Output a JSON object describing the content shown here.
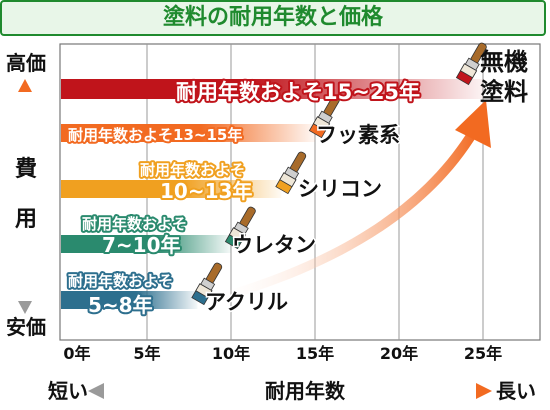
{
  "title": "塗料の耐用年数と価格",
  "y_axis": {
    "high": "高価",
    "label_top": "費",
    "label_bottom": "用",
    "low": "安価"
  },
  "x_axis": {
    "label": "耐用年数",
    "short": "短い",
    "long": "長い"
  },
  "colors": {
    "title_green": "#1f8a2e",
    "acrylic": "#2d6f8e",
    "urethane": "#2a8a6e",
    "silicon": "#f0a020",
    "fluorine": "#f26a21",
    "inorganic": "#c0141b",
    "arrow": "#f26a21"
  },
  "chart_data": {
    "type": "bar",
    "orientation": "horizontal",
    "title": "塗料の耐用年数と価格",
    "xlabel": "耐用年数",
    "ylabel": "費用",
    "xlim": [
      0,
      28
    ],
    "xticks": [
      0,
      5,
      10,
      15,
      20,
      25
    ],
    "xtick_labels": [
      "0年",
      "5年",
      "10年",
      "15年",
      "20年",
      "25年"
    ],
    "grid": true,
    "categories": [
      "アクリル",
      "ウレタン",
      "シリコン",
      "フッ素系",
      "無機塗料"
    ],
    "series": [
      {
        "name": "アクリル",
        "range": [
          5,
          8
        ],
        "label_line1": "耐用年数およそ",
        "label_line2": "5~8年",
        "color": "#2d6f8e"
      },
      {
        "name": "ウレタン",
        "range": [
          7,
          10
        ],
        "label_line1": "耐用年数およそ",
        "label_line2": "7~10年",
        "color": "#2a8a6e"
      },
      {
        "name": "シリコン",
        "range": [
          10,
          13
        ],
        "label_line1": "耐用年数およそ",
        "label_line2": "10~13年",
        "color": "#f0a020"
      },
      {
        "name": "フッ素系",
        "range": [
          13,
          15
        ],
        "label_line1": "耐用年数およそ13~15年",
        "label_line2": "",
        "color": "#f26a21"
      },
      {
        "name": "無機\n塗料",
        "display": [
          "無機",
          "塗料"
        ],
        "range": [
          15,
          25
        ],
        "label_line1": "耐用年数およそ15~25年",
        "label_line2": "",
        "color": "#c0141b"
      }
    ]
  }
}
